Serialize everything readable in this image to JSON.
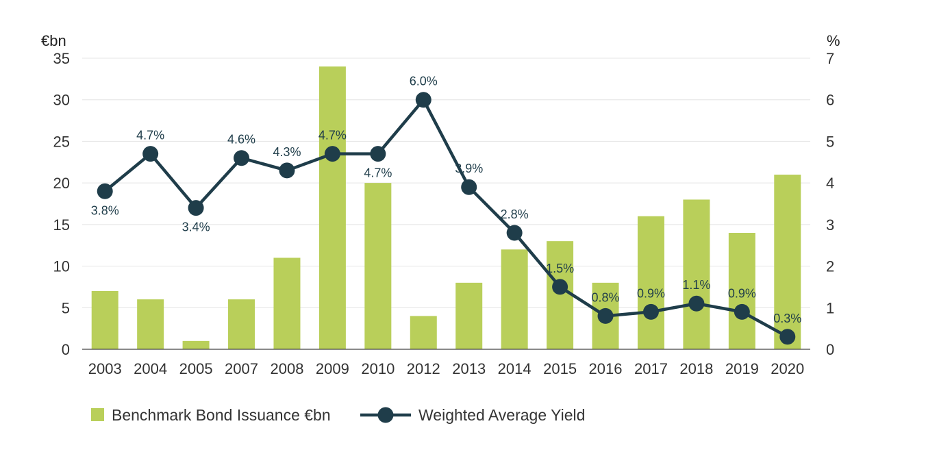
{
  "chart_data": {
    "type": "bar",
    "categories": [
      "2003",
      "2004",
      "2005",
      "2007",
      "2008",
      "2009",
      "2010",
      "2012",
      "2013",
      "2014",
      "2015",
      "2016",
      "2017",
      "2018",
      "2019",
      "2020"
    ],
    "series": [
      {
        "name": "Benchmark Bond Issuance €bn",
        "type": "bar",
        "axis": "left",
        "color": "#b9cf5a",
        "values": [
          7,
          6,
          1,
          6,
          11,
          34,
          20,
          4,
          8,
          12,
          13,
          8,
          16,
          18,
          14,
          21
        ]
      },
      {
        "name": "Weighted Average Yield",
        "type": "line",
        "axis": "right",
        "color": "#1f3d4a",
        "values": [
          3.8,
          4.7,
          3.4,
          4.6,
          4.3,
          4.7,
          4.7,
          6.0,
          3.9,
          2.8,
          1.5,
          0.8,
          0.9,
          1.1,
          0.9,
          0.3
        ],
        "labels": [
          "3.8%",
          "4.7%",
          "3.4%",
          "4.6%",
          "4.3%",
          "4.7%",
          "4.7%",
          "6.0%",
          "3.9%",
          "2.8%",
          "1.5%",
          "0.8%",
          "0.9%",
          "1.1%",
          "0.9%",
          "0.3%"
        ]
      }
    ],
    "y_left": {
      "unit_label": "€bn",
      "ylim": [
        0,
        35
      ],
      "ticks": [
        "0",
        "5",
        "10",
        "15",
        "20",
        "25",
        "30",
        "35"
      ]
    },
    "y_right": {
      "unit_label": "%",
      "ylim": [
        0,
        7
      ],
      "ticks": [
        "0",
        "1",
        "2",
        "3",
        "4",
        "5",
        "6",
        "7"
      ]
    },
    "grid": true,
    "legend_position": "bottom-left"
  }
}
